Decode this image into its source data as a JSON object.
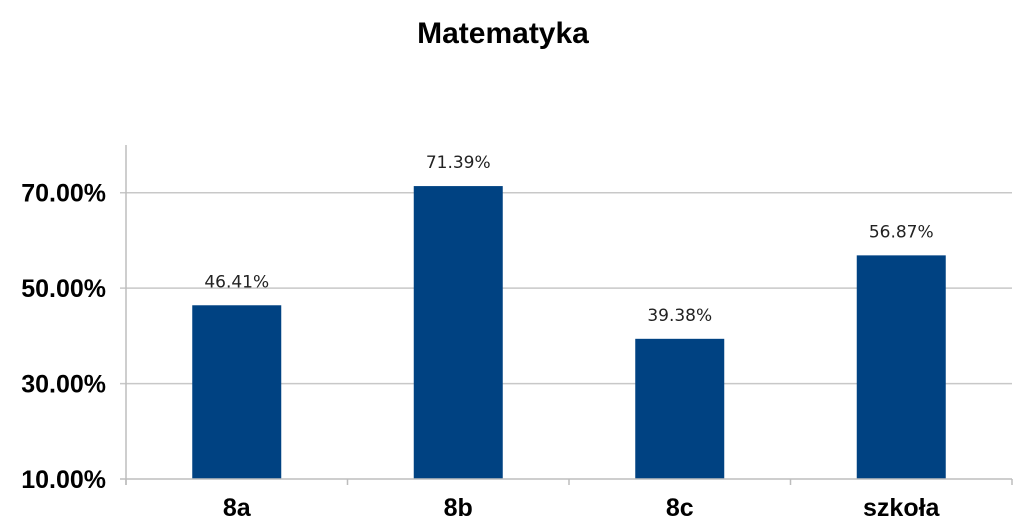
{
  "chart_data": {
    "type": "bar",
    "title": "Matematyka",
    "xlabel": "",
    "ylabel": "",
    "categories": [
      "8a",
      "8b",
      "8c",
      "szkoła"
    ],
    "values": [
      46.41,
      71.39,
      39.38,
      56.87
    ],
    "data_labels": [
      "46.41%",
      "71.39%",
      "39.38%",
      "56.87%"
    ],
    "yticks": [
      10,
      30,
      50,
      70
    ],
    "ytick_labels": [
      "10.00%",
      "30.00%",
      "50.00%",
      "70.00%"
    ],
    "ylim": [
      10,
      80
    ],
    "grid": true,
    "legend": "none",
    "bar_color": "#004282"
  }
}
